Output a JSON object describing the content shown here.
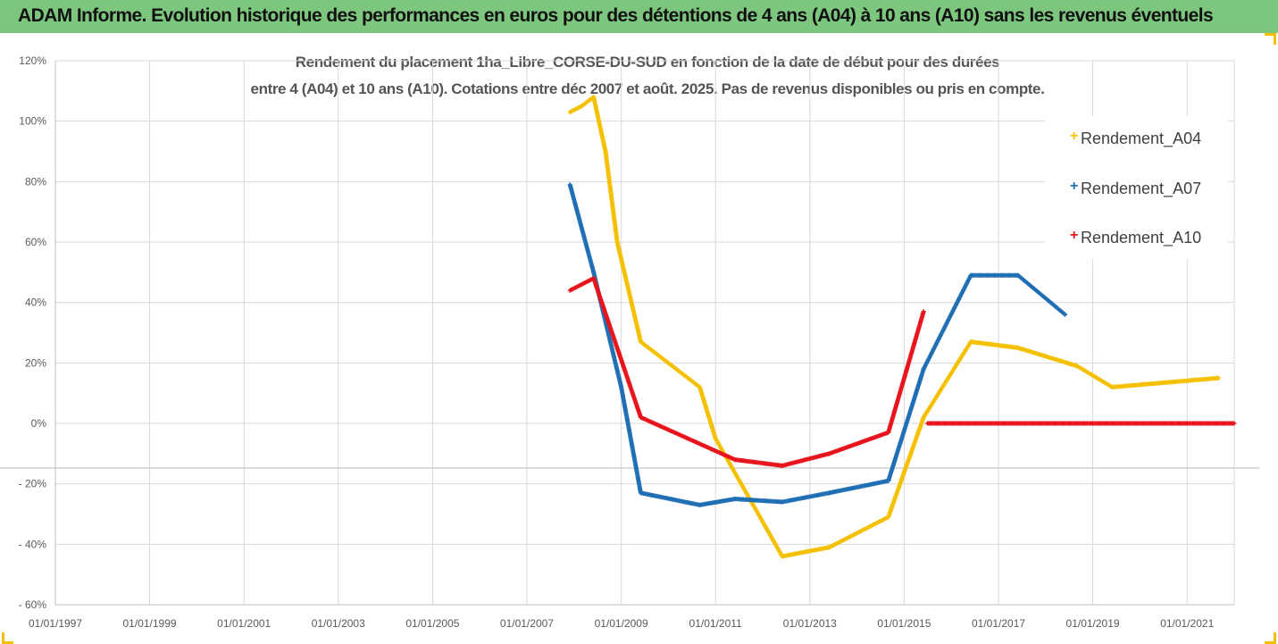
{
  "banner": {
    "title": "ADAM Informe. Evolution historique des performances en euros pour des détentions de 4 ans (A04) à 10 ans (A10) sans les revenus éventuels"
  },
  "chart_data": {
    "type": "scatter",
    "title_line1": "Rendement du placement 1ha_Libre_CORSE-DU-SUD en fonction de la date de début pour des durées",
    "title_line2": "entre 4 (A04) et 10 ans (A10). Cotations entre déc 2007 et août. 2025. Pas de revenus disponibles ou pris en compte.",
    "xlabel": "",
    "ylabel": "",
    "x_ticks": [
      "01/01/1997",
      "01/01/1999",
      "01/01/2001",
      "01/01/2003",
      "01/01/2005",
      "01/01/2007",
      "01/01/2009",
      "01/01/2011",
      "01/01/2013",
      "01/01/2015",
      "01/01/2017",
      "01/01/2019",
      "01/01/2021"
    ],
    "y_ticks": [
      "120%",
      "100%",
      "80%",
      "60%",
      "40%",
      "20%",
      "0%",
      "- 20%",
      "- 40%",
      "- 60%"
    ],
    "xlim": [
      "1997-01-01",
      "2022-01-01"
    ],
    "ylim": [
      -60,
      120
    ],
    "grid": true,
    "legend_position": "top-right",
    "marker": "+",
    "series": [
      {
        "name": "Rendement_A04",
        "color": "#f5c000",
        "points": [
          [
            "2007-12-01",
            103
          ],
          [
            "2008-03-01",
            105
          ],
          [
            "2008-06-01",
            108
          ],
          [
            "2008-09-01",
            90
          ],
          [
            "2008-12-01",
            60
          ],
          [
            "2009-06-01",
            27
          ],
          [
            "2010-09-01",
            12
          ],
          [
            "2011-01-01",
            -5
          ],
          [
            "2012-06-01",
            -44
          ],
          [
            "2013-06-01",
            -41
          ],
          [
            "2014-09-01",
            -31
          ],
          [
            "2015-06-01",
            2
          ],
          [
            "2016-06-01",
            27
          ],
          [
            "2017-06-01",
            25
          ],
          [
            "2018-09-01",
            19
          ],
          [
            "2019-06-01",
            12
          ],
          [
            "2021-09-01",
            15
          ]
        ]
      },
      {
        "name": "Rendement_A07",
        "color": "#1f6fb5",
        "points": [
          [
            "2007-12-01",
            79
          ],
          [
            "2008-06-01",
            50
          ],
          [
            "2009-01-01",
            12
          ],
          [
            "2009-06-01",
            -23
          ],
          [
            "2010-09-01",
            -27
          ],
          [
            "2011-06-01",
            -25
          ],
          [
            "2012-06-01",
            -26
          ],
          [
            "2013-06-01",
            -23
          ],
          [
            "2014-09-01",
            -19
          ],
          [
            "2015-06-01",
            18
          ],
          [
            "2016-06-01",
            49
          ],
          [
            "2017-06-01",
            49
          ],
          [
            "2018-06-01",
            36
          ]
        ]
      },
      {
        "name": "Rendement_A10",
        "color": "#e8141c",
        "points": [
          [
            "2007-12-01",
            44
          ],
          [
            "2008-06-01",
            48
          ],
          [
            "2009-06-01",
            2
          ],
          [
            "2010-06-01",
            -5
          ],
          [
            "2011-06-01",
            -12
          ],
          [
            "2012-06-01",
            -14
          ],
          [
            "2013-06-01",
            -10
          ],
          [
            "2014-09-01",
            -3
          ],
          [
            "2015-06-01",
            37
          ]
        ],
        "points_flat": [
          [
            "2015-07-01",
            0
          ],
          [
            "2022-01-01",
            0
          ]
        ]
      }
    ]
  }
}
